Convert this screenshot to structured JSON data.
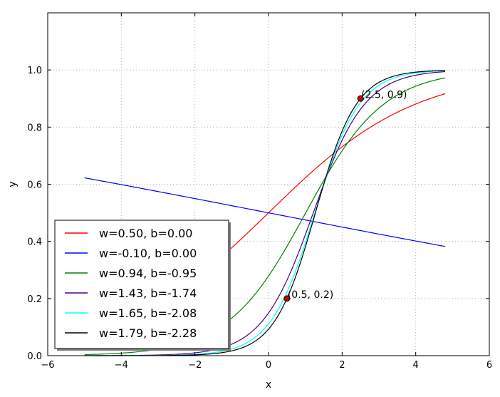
{
  "chart_data": {
    "type": "line",
    "title": "",
    "xlabel": "x",
    "ylabel": "y",
    "xlim": [
      -6,
      6
    ],
    "ylim": [
      0,
      1.2
    ],
    "xticks": [
      -6,
      -4,
      -2,
      0,
      2,
      4,
      6
    ],
    "xtick_labels": [
      "−6",
      "−4",
      "−2",
      "0",
      "2",
      "4",
      "6"
    ],
    "yticks": [
      0.0,
      0.2,
      0.4,
      0.6,
      0.8,
      1.0
    ],
    "ytick_labels": [
      "0.0",
      "0.2",
      "0.4",
      "0.6",
      "0.8",
      "1.0"
    ],
    "grid": true,
    "legend_position": "lower-left",
    "series": [
      {
        "name": "w=0.50, b=0.00",
        "color": "#ff0000",
        "function": "sigmoid",
        "w": 0.5,
        "b": 0.0,
        "x_range": [
          -5.0,
          4.8
        ]
      },
      {
        "name": "w=-0.10, b=0.00",
        "color": "#0000ff",
        "function": "sigmoid",
        "w": -0.1,
        "b": 0.0,
        "x_range": [
          -5.0,
          4.8
        ]
      },
      {
        "name": "w=0.94, b=-0.95",
        "color": "#008000",
        "function": "sigmoid",
        "w": 0.94,
        "b": -0.95,
        "x_range": [
          -5.0,
          4.8
        ]
      },
      {
        "name": "w=1.43, b=-1.74",
        "color": "#4b0082",
        "function": "sigmoid",
        "w": 1.43,
        "b": -1.74,
        "x_range": [
          -5.0,
          4.8
        ]
      },
      {
        "name": "w=1.65, b=-2.08",
        "color": "#00ffff",
        "function": "sigmoid",
        "w": 1.65,
        "b": -2.08,
        "x_range": [
          -5.0,
          4.8
        ]
      },
      {
        "name": "w=1.79, b=-2.28",
        "color": "#000000",
        "function": "sigmoid",
        "w": 1.79,
        "b": -2.28,
        "x_range": [
          -5.0,
          4.8
        ]
      }
    ],
    "points": [
      {
        "x": 0.5,
        "y": 0.2,
        "label": "(0.5, 0.2)",
        "color": "#cc0000"
      },
      {
        "x": 2.5,
        "y": 0.9,
        "label": "(2.5, 0.9)",
        "color": "#cc0000"
      }
    ]
  }
}
